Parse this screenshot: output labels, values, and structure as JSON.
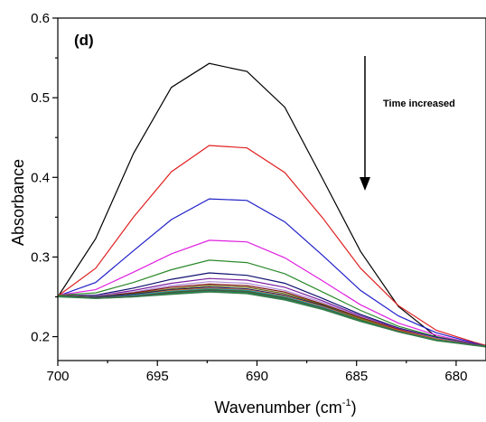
{
  "chart_data": {
    "type": "line",
    "title": "",
    "panel_label": "(d)",
    "xlabel": "Wavenumber (cm",
    "xlabel_sup": "-1",
    "xlabel_close": ")",
    "ylabel": "Absorbance",
    "xlim": [
      700,
      678.5
    ],
    "ylim": [
      0.17,
      0.6
    ],
    "x_reversed": true,
    "x_ticks": [
      700,
      695,
      690,
      685,
      680
    ],
    "y_ticks": [
      0.2,
      0.3,
      0.4,
      0.5,
      0.6
    ],
    "grid": false,
    "legend": "none",
    "annotation": "Time increased",
    "x": [
      700,
      698.1,
      696.2,
      694.3,
      692.4,
      690.5,
      688.6,
      686.7,
      684.8,
      682.9,
      681.0,
      679.1,
      678.5
    ],
    "series": [
      {
        "color": "#000000",
        "values": [
          0.25,
          0.323,
          0.43,
          0.513,
          0.543,
          0.533,
          0.488,
          0.398,
          0.307,
          0.238,
          0.2,
          0.19,
          0.188
        ]
      },
      {
        "color": "#e02020",
        "values": [
          0.251,
          0.286,
          0.35,
          0.407,
          0.44,
          0.437,
          0.406,
          0.349,
          0.286,
          0.239,
          0.208,
          0.193,
          0.189
        ]
      },
      {
        "color": "#2020c8",
        "values": [
          0.251,
          0.268,
          0.308,
          0.347,
          0.373,
          0.371,
          0.344,
          0.302,
          0.258,
          0.226,
          0.205,
          0.192,
          0.188
        ]
      },
      {
        "color": "#e020e0",
        "values": [
          0.252,
          0.259,
          0.281,
          0.304,
          0.321,
          0.319,
          0.299,
          0.27,
          0.24,
          0.217,
          0.202,
          0.191,
          0.188
        ]
      },
      {
        "color": "#2a8a2a",
        "values": [
          0.252,
          0.255,
          0.268,
          0.284,
          0.296,
          0.293,
          0.279,
          0.256,
          0.233,
          0.213,
          0.2,
          0.191,
          0.188
        ]
      },
      {
        "color": "#101070",
        "values": [
          0.252,
          0.252,
          0.261,
          0.272,
          0.28,
          0.277,
          0.267,
          0.248,
          0.228,
          0.211,
          0.199,
          0.191,
          0.188
        ]
      },
      {
        "color": "#7a1fa0",
        "values": [
          0.252,
          0.251,
          0.258,
          0.267,
          0.273,
          0.271,
          0.262,
          0.245,
          0.226,
          0.21,
          0.198,
          0.191,
          0.188
        ]
      },
      {
        "color": "#b08ad8",
        "values": [
          0.252,
          0.251,
          0.256,
          0.264,
          0.269,
          0.267,
          0.258,
          0.243,
          0.225,
          0.209,
          0.198,
          0.19,
          0.188
        ]
      },
      {
        "color": "#7a1010",
        "values": [
          0.252,
          0.25,
          0.255,
          0.262,
          0.266,
          0.264,
          0.256,
          0.241,
          0.224,
          0.209,
          0.197,
          0.19,
          0.188
        ]
      },
      {
        "color": "#6a6a10",
        "values": [
          0.252,
          0.25,
          0.254,
          0.26,
          0.264,
          0.262,
          0.254,
          0.24,
          0.223,
          0.208,
          0.197,
          0.19,
          0.188
        ]
      },
      {
        "color": "#10106a",
        "values": [
          0.251,
          0.25,
          0.253,
          0.259,
          0.262,
          0.26,
          0.252,
          0.239,
          0.222,
          0.208,
          0.197,
          0.19,
          0.188
        ]
      },
      {
        "color": "#e07020",
        "values": [
          0.251,
          0.249,
          0.252,
          0.258,
          0.261,
          0.259,
          0.251,
          0.238,
          0.222,
          0.208,
          0.197,
          0.19,
          0.188
        ]
      },
      {
        "color": "#20a0c0",
        "values": [
          0.251,
          0.249,
          0.252,
          0.257,
          0.26,
          0.258,
          0.25,
          0.237,
          0.221,
          0.207,
          0.196,
          0.19,
          0.188
        ]
      },
      {
        "color": "#3a6a20",
        "values": [
          0.251,
          0.249,
          0.251,
          0.256,
          0.259,
          0.257,
          0.249,
          0.236,
          0.221,
          0.207,
          0.196,
          0.19,
          0.188
        ]
      },
      {
        "color": "#505050",
        "values": [
          0.251,
          0.249,
          0.251,
          0.255,
          0.258,
          0.256,
          0.248,
          0.236,
          0.22,
          0.207,
          0.196,
          0.19,
          0.188
        ]
      },
      {
        "color": "#208a50",
        "values": [
          0.251,
          0.248,
          0.25,
          0.254,
          0.257,
          0.255,
          0.247,
          0.235,
          0.22,
          0.206,
          0.196,
          0.189,
          0.188
        ]
      },
      {
        "color": "#3a7a4a",
        "values": [
          0.25,
          0.248,
          0.25,
          0.253,
          0.256,
          0.254,
          0.246,
          0.234,
          0.219,
          0.206,
          0.195,
          0.189,
          0.187
        ]
      }
    ]
  }
}
